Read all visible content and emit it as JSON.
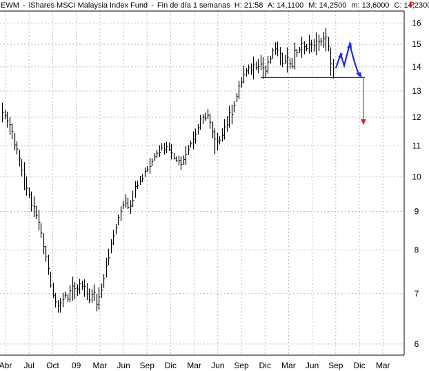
{
  "header": {
    "symbol": "EWM",
    "description": "iShares MSCI Malaysia Index Fund",
    "period": "Fin de día 1 semanas",
    "high_label": "H: 21:58",
    "open_label": "A: 14,1100",
    "max_label": "M: 14,2500",
    "min_label": "m: 13,6000",
    "close_label": "C: 14,2300",
    "p_marker": "P",
    "p_color": "#e0262b"
  },
  "chart_data": {
    "type": "ohlc",
    "scale": "log",
    "ylim": [
      5.8,
      16.6
    ],
    "y_ticks": [
      6,
      7,
      8,
      9,
      10,
      11,
      12,
      13,
      14,
      15,
      16
    ],
    "x_ticks": [
      "Abr",
      "Jul",
      "Oct",
      "09",
      "Mar",
      "Jun",
      "Sep",
      "Dic",
      "Mar",
      "Jun",
      "Sep",
      "Dic",
      "Mar",
      "Jun",
      "Sep",
      "Dic",
      "Mar"
    ],
    "series_color": "#000000",
    "grid": true,
    "weekly_closes": [
      12.3,
      12.0,
      11.7,
      11.4,
      11.0,
      10.6,
      10.2,
      9.8,
      9.5,
      9.2,
      9.0,
      8.7,
      8.4,
      8.0,
      7.6,
      7.2,
      6.9,
      6.7,
      6.8,
      7.0,
      6.9,
      7.1,
      7.0,
      7.1,
      7.2,
      7.1,
      7.0,
      6.9,
      7.0,
      6.8,
      7.0,
      7.3,
      7.7,
      8.0,
      8.3,
      8.6,
      8.9,
      9.2,
      9.3,
      9.1,
      9.4,
      9.7,
      9.9,
      10.0,
      10.2,
      10.3,
      10.5,
      10.7,
      10.8,
      11.0,
      10.9,
      11.0,
      10.7,
      10.6,
      10.5,
      10.4,
      10.7,
      10.9,
      11.1,
      11.3,
      11.6,
      11.9,
      12.0,
      12.1,
      11.7,
      11.2,
      11.0,
      11.3,
      11.6,
      11.8,
      12.1,
      12.4,
      12.8,
      13.2,
      13.6,
      13.8,
      13.9,
      14.0,
      14.1,
      14.2,
      14.0,
      13.8,
      14.2,
      14.6,
      14.9,
      14.5,
      14.3,
      14.4,
      14.2,
      14.1,
      14.6,
      14.7,
      14.9,
      14.8,
      15.0,
      14.9,
      15.1,
      14.9,
      15.2,
      15.3,
      15.1,
      13.9,
      14.2
    ],
    "annotations": {
      "neckline": {
        "value": 13.55,
        "color": "#1f2bd6"
      },
      "pattern_color": "#1f2bd6",
      "projection": {
        "from": 13.55,
        "to": 11.75,
        "color": "#e0262b"
      }
    }
  }
}
